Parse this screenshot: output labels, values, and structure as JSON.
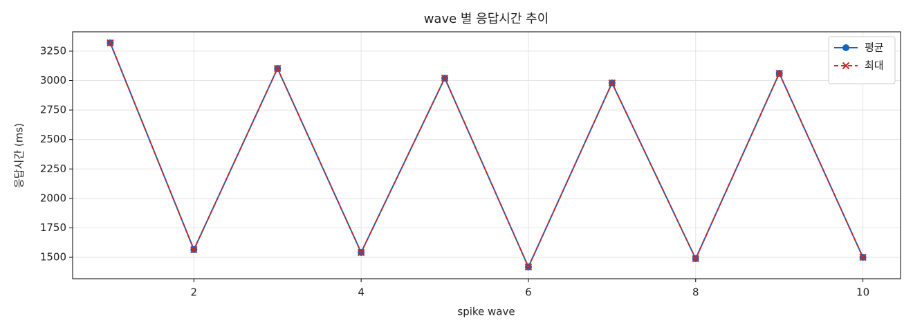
{
  "chart_data": {
    "type": "line",
    "title": "wave 별 응답시간 추이",
    "x_label": "spike wave",
    "y_label": "응답시간 (ms)",
    "x": [
      1,
      2,
      3,
      4,
      5,
      6,
      7,
      8,
      9,
      10
    ],
    "series": [
      {
        "name": "평균",
        "color": "#1565c0",
        "marker": "circle",
        "line_style": "solid",
        "values": [
          3320,
          1565,
          3103,
          1541,
          3021,
          1418,
          2980,
          1488,
          3062,
          1500
        ]
      },
      {
        "name": "최대",
        "color": "#c62828",
        "marker": "x",
        "line_style": "dashed",
        "values": [
          3320,
          1565,
          3103,
          1541,
          3021,
          1418,
          2980,
          1488,
          3062,
          1500
        ]
      }
    ],
    "xlim": [
      0.55,
      10.45
    ],
    "xticks": [
      2,
      4,
      6,
      8,
      10
    ],
    "ylim": [
      1318,
      3414
    ],
    "yticks": [
      1500,
      1750,
      2000,
      2250,
      2500,
      2750,
      3000,
      3250
    ],
    "grid": true,
    "legend": "upper right"
  }
}
